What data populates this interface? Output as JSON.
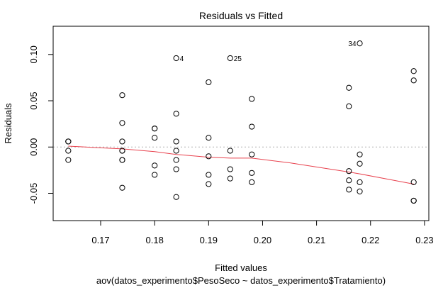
{
  "chart_data": {
    "type": "scatter",
    "title": "Residuals vs Fitted",
    "xlabel": "Fitted values",
    "sublabel": "aov(datos_experimento$PesoSeco ~ datos_experimento$Tratamiento)",
    "ylabel": "Residuals",
    "xlim": [
      0.1612,
      0.2308
    ],
    "ylim": [
      -0.0795,
      0.1305
    ],
    "xticks": [
      "0.17",
      "0.18",
      "0.19",
      "0.20",
      "0.21",
      "0.22",
      "0.23"
    ],
    "xtick_values": [
      0.17,
      0.18,
      0.19,
      0.2,
      0.21,
      0.22,
      0.23
    ],
    "yticks": [
      "-0.05",
      "0.00",
      "0.05",
      "0.10"
    ],
    "ytick_values": [
      -0.05,
      0.0,
      0.05,
      0.1
    ],
    "zero_line": true,
    "points": [
      {
        "x": 0.164,
        "y": 0.006
      },
      {
        "x": 0.164,
        "y": 0.006
      },
      {
        "x": 0.164,
        "y": -0.004
      },
      {
        "x": 0.164,
        "y": -0.014
      },
      {
        "x": 0.174,
        "y": 0.056
      },
      {
        "x": 0.174,
        "y": 0.026
      },
      {
        "x": 0.174,
        "y": 0.006
      },
      {
        "x": 0.174,
        "y": -0.004
      },
      {
        "x": 0.174,
        "y": -0.004
      },
      {
        "x": 0.174,
        "y": -0.014
      },
      {
        "x": 0.174,
        "y": -0.014
      },
      {
        "x": 0.174,
        "y": -0.044
      },
      {
        "x": 0.18,
        "y": 0.02
      },
      {
        "x": 0.18,
        "y": 0.02
      },
      {
        "x": 0.18,
        "y": 0.01
      },
      {
        "x": 0.18,
        "y": -0.02
      },
      {
        "x": 0.18,
        "y": -0.03
      },
      {
        "x": 0.184,
        "y": 0.096
      },
      {
        "x": 0.184,
        "y": 0.036
      },
      {
        "x": 0.184,
        "y": 0.006
      },
      {
        "x": 0.184,
        "y": -0.004
      },
      {
        "x": 0.184,
        "y": -0.014
      },
      {
        "x": 0.184,
        "y": -0.024
      },
      {
        "x": 0.184,
        "y": -0.054
      },
      {
        "x": 0.19,
        "y": 0.07
      },
      {
        "x": 0.19,
        "y": 0.01
      },
      {
        "x": 0.19,
        "y": -0.01
      },
      {
        "x": 0.19,
        "y": -0.03
      },
      {
        "x": 0.19,
        "y": -0.04
      },
      {
        "x": 0.194,
        "y": 0.096
      },
      {
        "x": 0.194,
        "y": -0.004
      },
      {
        "x": 0.194,
        "y": -0.024
      },
      {
        "x": 0.194,
        "y": -0.034
      },
      {
        "x": 0.198,
        "y": 0.052
      },
      {
        "x": 0.198,
        "y": 0.022
      },
      {
        "x": 0.198,
        "y": -0.008
      },
      {
        "x": 0.198,
        "y": -0.028
      },
      {
        "x": 0.198,
        "y": -0.038
      },
      {
        "x": 0.216,
        "y": 0.064
      },
      {
        "x": 0.216,
        "y": 0.044
      },
      {
        "x": 0.216,
        "y": -0.026
      },
      {
        "x": 0.216,
        "y": -0.036
      },
      {
        "x": 0.216,
        "y": -0.046
      },
      {
        "x": 0.218,
        "y": 0.112
      },
      {
        "x": 0.218,
        "y": -0.008
      },
      {
        "x": 0.218,
        "y": -0.018
      },
      {
        "x": 0.218,
        "y": -0.038
      },
      {
        "x": 0.218,
        "y": -0.048
      },
      {
        "x": 0.228,
        "y": 0.082
      },
      {
        "x": 0.228,
        "y": 0.072
      },
      {
        "x": 0.228,
        "y": -0.038
      },
      {
        "x": 0.228,
        "y": -0.058
      },
      {
        "x": 0.228,
        "y": -0.058
      }
    ],
    "point_labels": [
      {
        "text": "4",
        "x": 0.184,
        "y": 0.096,
        "side": "right"
      },
      {
        "text": "25",
        "x": 0.194,
        "y": 0.096,
        "side": "right"
      },
      {
        "text": "34",
        "x": 0.218,
        "y": 0.112,
        "side": "left"
      }
    ],
    "smoother": [
      {
        "x": 0.164,
        "y": 0.001
      },
      {
        "x": 0.174,
        "y": -0.002
      },
      {
        "x": 0.18,
        "y": -0.005
      },
      {
        "x": 0.184,
        "y": -0.008
      },
      {
        "x": 0.19,
        "y": -0.011
      },
      {
        "x": 0.194,
        "y": -0.012
      },
      {
        "x": 0.198,
        "y": -0.012
      },
      {
        "x": 0.205,
        "y": -0.017
      },
      {
        "x": 0.216,
        "y": -0.027
      },
      {
        "x": 0.218,
        "y": -0.029
      },
      {
        "x": 0.228,
        "y": -0.04
      }
    ],
    "colors": {
      "points": "#000000",
      "smoother": "#e8424e",
      "zero_line": "#b0b0b0"
    }
  }
}
